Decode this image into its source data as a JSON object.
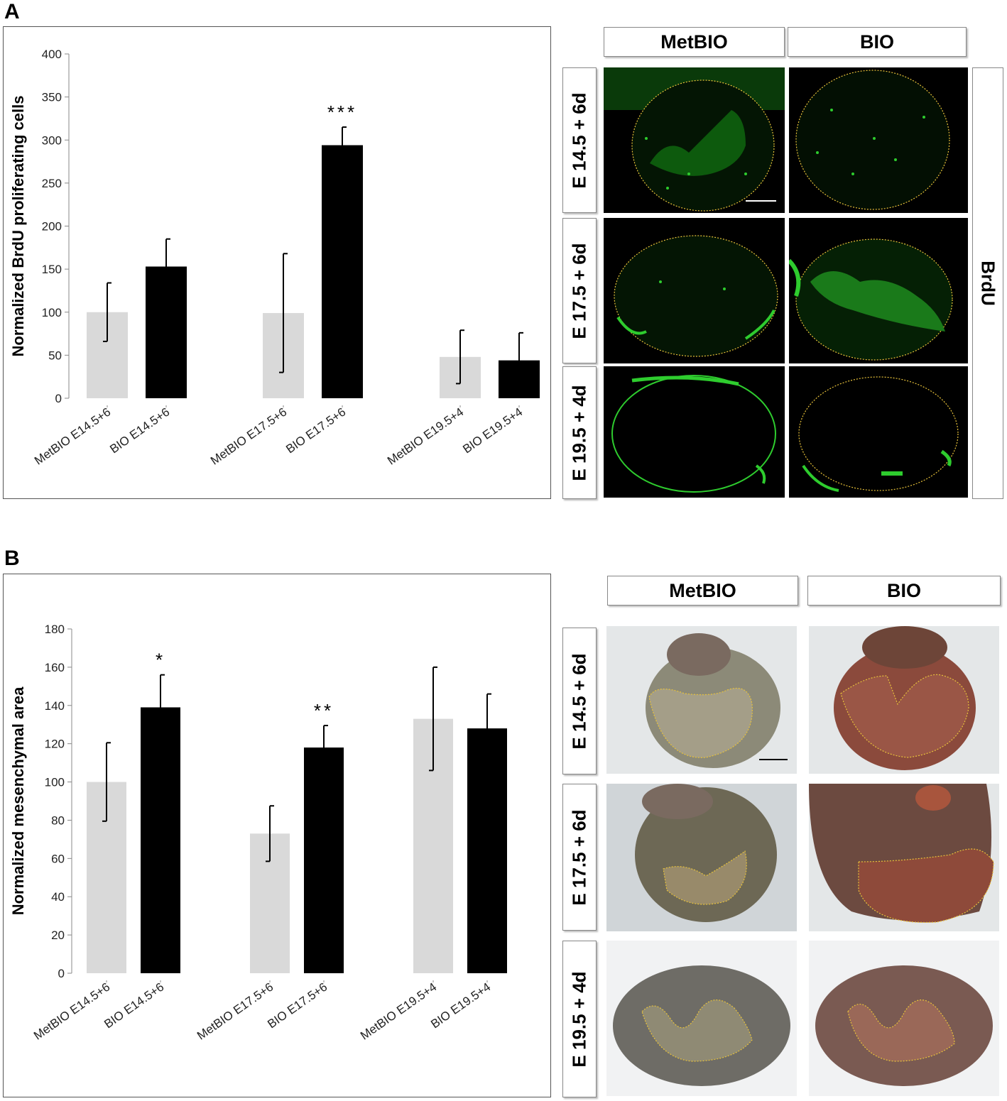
{
  "panel_a": {
    "letter": "A",
    "columns": [
      "MetBIO",
      "BIO"
    ],
    "rows": [
      "E 14.5 + 6d",
      "E 17.5 + 6d",
      "E 19.5 + 4d"
    ],
    "side_label": "BrdU"
  },
  "panel_b": {
    "letter": "B",
    "columns": [
      "MetBIO",
      "BIO"
    ],
    "rows": [
      "E 14.5 + 6d",
      "E 17.5 + 6d",
      "E 19.5 + 4d"
    ]
  },
  "colors": {
    "metbio": "#d9d9d9",
    "bio": "#000000",
    "fluor": "#2ecc2e",
    "outline": "#e8c23a"
  },
  "chart_data": [
    {
      "type": "bar",
      "ylabel": "Normalized BrdU proliferating cells",
      "ylim": [
        0,
        400
      ],
      "yticks": [
        0,
        50,
        100,
        150,
        200,
        250,
        300,
        350,
        400
      ],
      "categories": [
        "MetBIO E14.5+6",
        "BIO E14.5+6",
        "MetBIO E17.5+6",
        "BIO E17.5+6",
        "MetBIO E19.5+4",
        "BIO E19.5+4"
      ],
      "values": [
        100,
        153,
        99,
        294,
        48,
        44
      ],
      "errors": [
        34,
        32,
        69,
        21,
        31,
        32
      ],
      "significance": [
        "",
        "",
        "",
        "***",
        "",
        ""
      ],
      "grid": false
    },
    {
      "type": "bar",
      "ylabel": "Normalized mesenchymal area",
      "ylim": [
        0,
        180
      ],
      "yticks": [
        0,
        20,
        40,
        60,
        80,
        100,
        120,
        140,
        160,
        180
      ],
      "categories": [
        "MetBIO E14.5+6",
        "BIO E14.5+6",
        "MetBIO E17.5+6",
        "BIO E17.5+6",
        "MetBIO E19.5+4",
        "BIO E19.5+4"
      ],
      "values": [
        100,
        139,
        73,
        118,
        133,
        128
      ],
      "errors": [
        20.5,
        17,
        14.5,
        11.5,
        27,
        18
      ],
      "significance": [
        "",
        "*",
        "",
        "**",
        "",
        ""
      ],
      "grid": false
    }
  ]
}
